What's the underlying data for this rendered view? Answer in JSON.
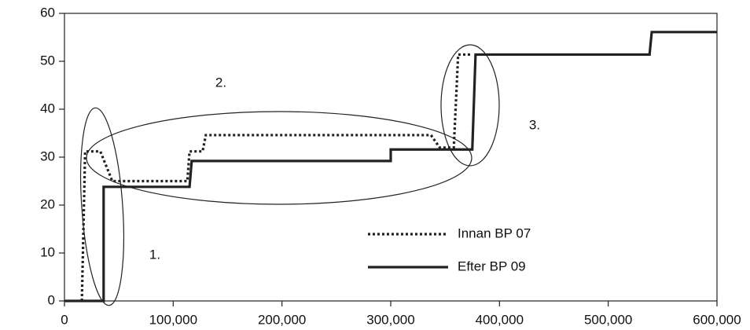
{
  "chart_data": {
    "type": "line",
    "xlim": [
      0,
      600000
    ],
    "ylim": [
      0,
      60
    ],
    "xticks": [
      0,
      {
        "value": 100000,
        "label": "100,000"
      },
      {
        "value": 200000,
        "label": "200,000"
      },
      {
        "value": 300000,
        "label": "300,000"
      },
      {
        "value": 400000,
        "label": "400,000"
      },
      {
        "value": 500000,
        "label": "500,000"
      },
      {
        "value": 600000,
        "label": "600,000"
      }
    ],
    "yticks": [
      0,
      10,
      20,
      30,
      40,
      50,
      60
    ],
    "series": [
      {
        "name": "Innan BP 07",
        "color": "#222222",
        "style": "dotted",
        "x": [
          16000,
          19000,
          33000,
          44000,
          113000,
          115000,
          127000,
          130000,
          337000,
          345000,
          358000,
          362000,
          375000
        ],
        "values": [
          0,
          31.2,
          31.2,
          25,
          25,
          31.2,
          31.2,
          34.6,
          34.6,
          32,
          32,
          51.4,
          51.4
        ]
      },
      {
        "name": "Efter BP 09",
        "color": "#222222",
        "style": "solid",
        "x": [
          0,
          36000,
          36000,
          115000,
          117000,
          300000,
          300000,
          375000,
          378000,
          538000,
          540000,
          600000
        ],
        "values": [
          0,
          0,
          23.8,
          23.8,
          29.2,
          29.2,
          31.6,
          31.6,
          51.4,
          51.4,
          56.1,
          56.1
        ]
      }
    ],
    "annotations": [
      "1.",
      "2.",
      "3."
    ]
  }
}
